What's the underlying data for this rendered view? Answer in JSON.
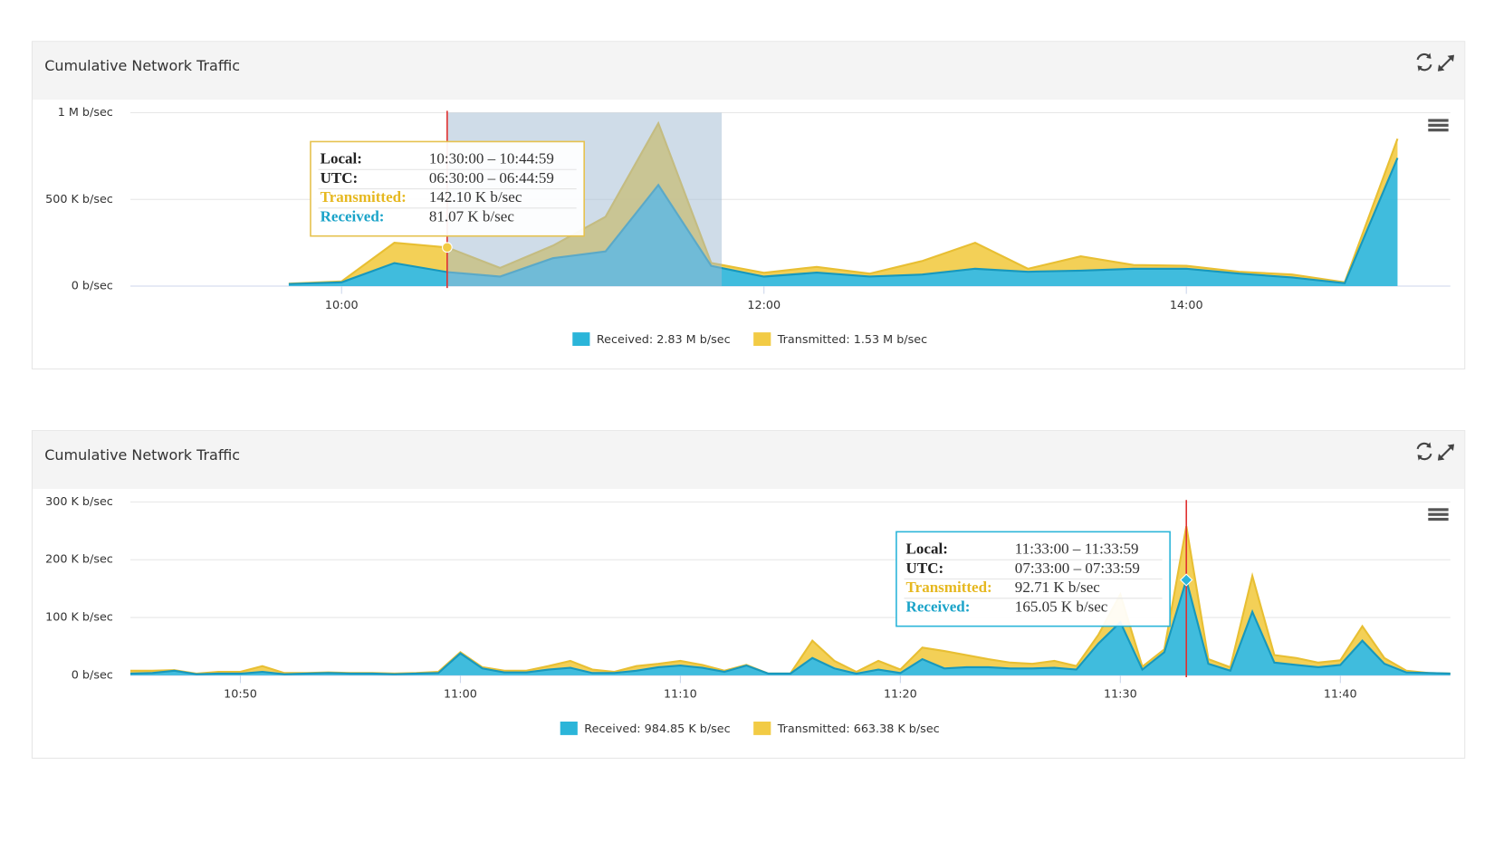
{
  "chart_data": [
    {
      "type": "area",
      "stacked": true,
      "title": "Cumulative Network Traffic",
      "x": [
        585,
        600,
        615,
        630,
        645,
        660,
        675,
        690,
        705,
        720,
        735,
        750,
        765,
        780,
        795,
        810,
        825,
        840,
        855,
        870,
        885,
        900
      ],
      "xlim": [
        540,
        915
      ],
      "xticks": [
        {
          "value": 600,
          "label": "10:00"
        },
        {
          "value": 720,
          "label": "12:00"
        },
        {
          "value": 840,
          "label": "14:00"
        }
      ],
      "ylim": [
        0,
        1000000
      ],
      "yticks": [
        {
          "value": 0,
          "label": "0 b/sec"
        },
        {
          "value": 500000,
          "label": "500 K b/sec"
        },
        {
          "value": 1000000,
          "label": "1 M b/sec"
        }
      ],
      "grid": true,
      "series": [
        {
          "name": "Received: 2.83 M b/sec",
          "color": "#2bb5d9",
          "values": [
            12000,
            22000,
            133000,
            81070,
            55000,
            161000,
            200000,
            583000,
            117000,
            55000,
            78000,
            55000,
            67000,
            100000,
            83000,
            89000,
            100000,
            100000,
            72000,
            50000,
            17000,
            739000
          ]
        },
        {
          "name": "Transmitted: 1.53 M b/sec",
          "color": "#f2cb45",
          "values": [
            2000,
            5000,
            117000,
            142100,
            50000,
            72000,
            200000,
            356000,
            17000,
            22000,
            33000,
            17000,
            78000,
            150000,
            17000,
            83000,
            22000,
            17000,
            11000,
            17000,
            5000,
            111000
          ]
        }
      ],
      "plot_band": [
        630,
        708
      ],
      "tooltip": {
        "x": 630,
        "rows": [
          {
            "label": "Local:",
            "value": "10:30:00 – 10:44:59"
          },
          {
            "label": "UTC:",
            "value": "06:30:00 – 06:44:59"
          },
          {
            "label": "Transmitted:",
            "value": "142.10 K b/sec"
          },
          {
            "label": "Received:",
            "value": "81.07 K b/sec"
          }
        ]
      }
    },
    {
      "type": "area",
      "stacked": true,
      "title": "Cumulative Network Traffic",
      "x": [
        645,
        646,
        647,
        648,
        649,
        650,
        651,
        652,
        653,
        654,
        655,
        656,
        657,
        658,
        659,
        660,
        661,
        662,
        663,
        664,
        665,
        666,
        667,
        668,
        669,
        670,
        671,
        672,
        673,
        674,
        675,
        676,
        677,
        678,
        679,
        680,
        681,
        682,
        683,
        684,
        685,
        686,
        687,
        688,
        689,
        690,
        691,
        692,
        693,
        694,
        695,
        696,
        697,
        698,
        699,
        700,
        701,
        702,
        703,
        704,
        705
      ],
      "xlim": [
        645,
        705
      ],
      "xticks": [
        {
          "value": 650,
          "label": "10:50"
        },
        {
          "value": 660,
          "label": "11:00"
        },
        {
          "value": 670,
          "label": "11:10"
        },
        {
          "value": 680,
          "label": "11:20"
        },
        {
          "value": 690,
          "label": "11:30"
        },
        {
          "value": 700,
          "label": "11:40"
        }
      ],
      "ylim": [
        0,
        300000
      ],
      "yticks": [
        {
          "value": 0,
          "label": "0 b/sec"
        },
        {
          "value": 100000,
          "label": "100 K b/sec"
        },
        {
          "value": 200000,
          "label": "200 K b/sec"
        },
        {
          "value": 300000,
          "label": "300 K b/sec"
        }
      ],
      "grid": true,
      "series": [
        {
          "name": "Received: 984.85 K b/sec",
          "color": "#2bb5d9",
          "values": [
            3000,
            4000,
            8000,
            2000,
            3000,
            3000,
            6000,
            2000,
            3000,
            4000,
            3000,
            3000,
            2000,
            3000,
            4000,
            38000,
            12000,
            5000,
            5000,
            10000,
            13000,
            4000,
            4000,
            8000,
            14000,
            17000,
            13000,
            6000,
            17000,
            3000,
            3000,
            30000,
            12000,
            3000,
            10000,
            4000,
            28000,
            12000,
            14000,
            14000,
            12000,
            12000,
            13000,
            10000,
            55000,
            92000,
            10000,
            40000,
            165050,
            20000,
            8000,
            110000,
            22000,
            18000,
            14000,
            18000,
            60000,
            20000,
            5000,
            4000,
            3000
          ]
        },
        {
          "name": "Transmitted: 663.38 K b/sec",
          "color": "#f2cb45",
          "values": [
            5000,
            4000,
            1000,
            1000,
            3000,
            3000,
            10000,
            2000,
            1000,
            1000,
            1000,
            1000,
            1000,
            1000,
            2000,
            2000,
            2000,
            3000,
            3000,
            6000,
            12000,
            6000,
            2000,
            8000,
            6000,
            8000,
            5000,
            2000,
            1000,
            0,
            0,
            30000,
            13000,
            3000,
            15000,
            6000,
            20000,
            30000,
            21000,
            14000,
            10000,
            8000,
            12000,
            6000,
            15000,
            48000,
            5000,
            5000,
            92710,
            8000,
            6000,
            62000,
            13000,
            12000,
            8000,
            8000,
            25000,
            10000,
            3000,
            0,
            0
          ]
        }
      ],
      "tooltip": {
        "x": 693,
        "rows": [
          {
            "label": "Local:",
            "value": "11:33:00 – 11:33:59"
          },
          {
            "label": "UTC:",
            "value": "07:33:00 – 07:33:59"
          },
          {
            "label": "Transmitted:",
            "value": "92.71 K b/sec"
          },
          {
            "label": "Received:",
            "value": "165.05 K b/sec"
          }
        ]
      }
    }
  ]
}
